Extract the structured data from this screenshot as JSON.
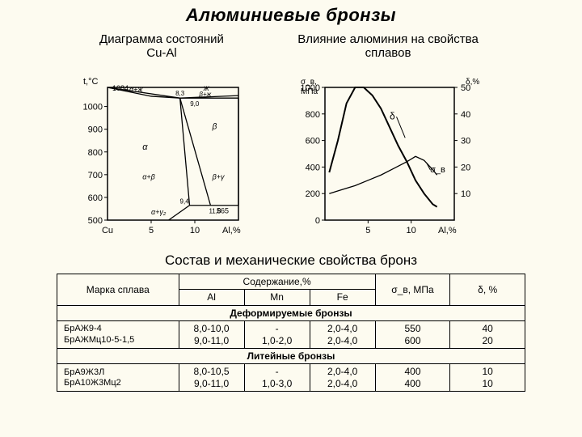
{
  "title": "Алюминиевые бронзы",
  "subtitle_left": "Диаграмма состояний\nCu-Al",
  "subtitle_right": "Влияние алюминия на свойства\nсплавов",
  "phase_chart": {
    "y_axis_label": "t,°C",
    "x_axis_label": "Al,%",
    "x_left_label": "Cu",
    "y_ticks": [
      500,
      600,
      700,
      800,
      900,
      1000
    ],
    "x_ticks": [
      5,
      10
    ],
    "y_min": 500,
    "y_max": 1084,
    "x_min": 0,
    "x_max": 15,
    "top_point_label": "1084",
    "region_labels": {
      "zh": "ж",
      "alpha_zh": "α+ж",
      "beta_zh": "β+ж",
      "beta": "β",
      "beta_gamma": "β+γ",
      "alpha": "α",
      "alpha_beta": "α+β",
      "alpha_gamma": "α+γ₂",
      "t_565": "565",
      "p_83": "8,3",
      "p_90": "9,0",
      "p_94": "9,4",
      "p_118": "11,8"
    },
    "liquidus": [
      [
        0,
        1084
      ],
      [
        8.3,
        1037
      ],
      [
        15,
        1048
      ]
    ],
    "solidus": [
      [
        0,
        1084
      ],
      [
        5,
        1045
      ],
      [
        8.3,
        1037
      ]
    ],
    "eutectic_h": [
      [
        8.3,
        1037
      ],
      [
        15,
        1037
      ]
    ],
    "alpha_boundary": [
      [
        8.3,
        1037
      ],
      [
        9.4,
        565
      ],
      [
        7,
        500
      ]
    ],
    "beta_left": [
      [
        8.3,
        1037
      ],
      [
        11.8,
        565
      ]
    ],
    "beta_right": [
      [
        15,
        1037
      ],
      [
        15,
        565
      ]
    ],
    "eutectoid_h": [
      [
        9.4,
        565
      ],
      [
        15,
        565
      ]
    ],
    "axis_color": "#000",
    "line_color": "#000",
    "line_width": 1.3,
    "bg_color": "#fdfbf0"
  },
  "prop_chart": {
    "y1_label": "σ_в, МПа",
    "y2_label": "δ,%",
    "x_label": "Al,%",
    "y1_ticks": [
      0,
      200,
      400,
      600,
      800,
      1000
    ],
    "y2_ticks": [
      10,
      20,
      30,
      40,
      50
    ],
    "x_ticks": [
      5,
      10
    ],
    "x_min": 0,
    "x_max": 15,
    "y1_min": 0,
    "y1_max": 1000,
    "delta_curve": [
      [
        0.5,
        18
      ],
      [
        1.5,
        30
      ],
      [
        2.5,
        44
      ],
      [
        3.5,
        50
      ],
      [
        4.5,
        50
      ],
      [
        5.5,
        47
      ],
      [
        6.5,
        42
      ],
      [
        7.5,
        35
      ],
      [
        8.5,
        28
      ],
      [
        9.5,
        22
      ],
      [
        10.5,
        15
      ],
      [
        11.5,
        10
      ],
      [
        12.5,
        6
      ],
      [
        13,
        5
      ]
    ],
    "sigma_curve": [
      [
        0.5,
        200
      ],
      [
        2,
        230
      ],
      [
        3.5,
        260
      ],
      [
        5,
        300
      ],
      [
        6.5,
        340
      ],
      [
        8,
        390
      ],
      [
        9.5,
        440
      ],
      [
        10.5,
        480
      ],
      [
        11.5,
        450
      ],
      [
        12.5,
        380
      ],
      [
        13,
        340
      ]
    ],
    "curve_labels": {
      "delta": "δ",
      "sigma": "σ_в"
    },
    "line_color": "#000",
    "line_width": 1.3
  },
  "table_title": "Состав и механические свойства бронз",
  "table": {
    "header": {
      "brand": "Марка сплава",
      "content": "Содержание,%",
      "al": "Al",
      "mn": "Mn",
      "fe": "Fe",
      "sigma": "σ_в, МПа",
      "delta": "δ, %"
    },
    "section1": "Деформируемые бронзы",
    "rows1": [
      {
        "brand": "БрАЖ9-4",
        "al": "8,0-10,0",
        "mn": "-",
        "fe": "2,0-4,0",
        "s": "550",
        "d": "40"
      },
      {
        "brand": "БрАЖМц10-5-1,5",
        "al": "9,0-11,0",
        "mn": "1,0-2,0",
        "fe": "2,0-4,0",
        "s": "600",
        "d": "20"
      }
    ],
    "section2": "Литейные бронзы",
    "rows2": [
      {
        "brand": "БрА9Ж3Л",
        "al": "8,0-10,5",
        "mn": "-",
        "fe": "2,0-4,0",
        "s": "400",
        "d": "10"
      },
      {
        "brand": "БрА10Ж3Мц2",
        "al": "9,0-11,0",
        "mn": "1,0-3,0",
        "fe": "2,0-4,0",
        "s": "400",
        "d": "10"
      }
    ],
    "col_widths_pct": [
      26,
      14,
      14,
      14,
      16,
      16
    ]
  }
}
